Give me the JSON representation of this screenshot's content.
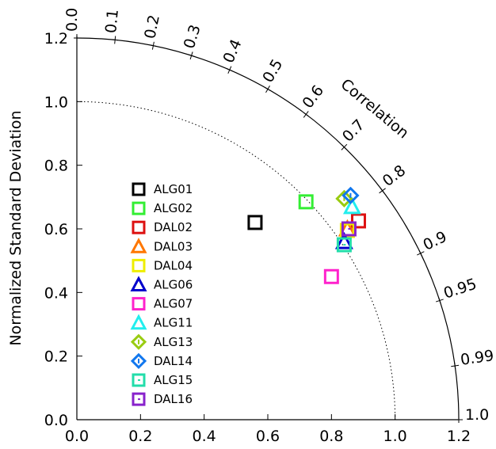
{
  "chart_data": {
    "type": "scatter",
    "subtype": "taylor-diagram",
    "ylabel": "Normalized Standard Deviation",
    "corr_label": "Correlation",
    "x_ticks": [
      "0.0",
      "0.2",
      "0.4",
      "0.6",
      "0.8",
      "1.0",
      "1.2"
    ],
    "y_ticks": [
      "0.0",
      "0.2",
      "0.4",
      "0.6",
      "0.8",
      "1.0",
      "1.2"
    ],
    "corr_ticks": [
      {
        "value": 0.0,
        "label": "0.0"
      },
      {
        "value": 0.1,
        "label": "0.1"
      },
      {
        "value": 0.2,
        "label": "0.2"
      },
      {
        "value": 0.3,
        "label": "0.3"
      },
      {
        "value": 0.4,
        "label": "0.4"
      },
      {
        "value": 0.5,
        "label": "0.5"
      },
      {
        "value": 0.6,
        "label": "0.6"
      },
      {
        "value": 0.7,
        "label": "0.7"
      },
      {
        "value": 0.8,
        "label": "0.8"
      },
      {
        "value": 0.9,
        "label": "0.9"
      },
      {
        "value": 0.95,
        "label": "0.95"
      },
      {
        "value": 0.99,
        "label": "0.99"
      },
      {
        "value": 1.0,
        "label": "1.0"
      }
    ],
    "max_std": 1.2,
    "reference_std": 1.0,
    "series": [
      {
        "name": "ALG01",
        "marker": "square",
        "color": "#000000",
        "x": 0.56,
        "y": 0.62
      },
      {
        "name": "ALG02",
        "marker": "square",
        "color": "#33ee33",
        "x": 0.72,
        "y": 0.685
      },
      {
        "name": "DAL02",
        "marker": "square",
        "color": "#dd1111",
        "x": 0.885,
        "y": 0.625
      },
      {
        "name": "DAL03",
        "marker": "triangle",
        "color": "#ff7700",
        "x": 0.85,
        "y": 0.6
      },
      {
        "name": "DAL04",
        "marker": "square",
        "color": "#eeee00",
        "x": 0.85,
        "y": 0.595
      },
      {
        "name": "ALG06",
        "marker": "triangle",
        "color": "#0000cc",
        "x": 0.84,
        "y": 0.56
      },
      {
        "name": "ALG07",
        "marker": "square",
        "color": "#ff22cc",
        "x": 0.8,
        "y": 0.45
      },
      {
        "name": "ALG11",
        "marker": "triangle",
        "color": "#22eeee",
        "x": 0.865,
        "y": 0.67
      },
      {
        "name": "ALG13",
        "marker": "diamond",
        "color": "#99cc11",
        "x": 0.84,
        "y": 0.695
      },
      {
        "name": "DAL14",
        "marker": "diamond",
        "color": "#1177ee",
        "x": 0.86,
        "y": 0.705
      },
      {
        "name": "ALG15",
        "marker": "square-e",
        "color": "#22ddaa",
        "x": 0.84,
        "y": 0.55
      },
      {
        "name": "DAL16",
        "marker": "square-e",
        "color": "#8822cc",
        "x": 0.855,
        "y": 0.6
      }
    ]
  }
}
